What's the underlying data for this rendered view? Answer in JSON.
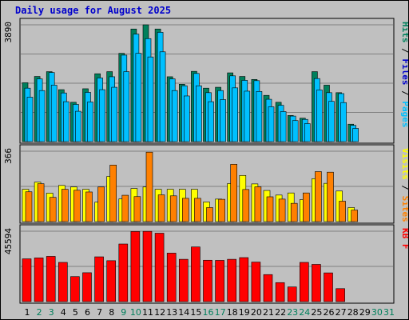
{
  "title": "Daily usage for August 2025",
  "colors": {
    "hits": "#00805c",
    "files": "#00c0ff",
    "pages": "#00c0ff",
    "visits": "#ffff00",
    "sites": "#ff8000",
    "kbf": "#ff0000",
    "weekday": "#000000",
    "weekend": "#00805c",
    "panel_bg": "#c0c0c0"
  },
  "chart_data": {
    "type": "bar",
    "days": [
      "1",
      "2",
      "3",
      "4",
      "5",
      "6",
      "7",
      "8",
      "9",
      "10",
      "11",
      "12",
      "13",
      "14",
      "15",
      "16",
      "17",
      "18",
      "19",
      "20",
      "21",
      "22",
      "23",
      "24",
      "25",
      "26",
      "27",
      "28",
      "29",
      "30",
      "31"
    ],
    "weekend_days": [
      "2",
      "3",
      "9",
      "10",
      "16",
      "17",
      "23",
      "24",
      "30",
      "31"
    ],
    "panels": [
      {
        "id": "top",
        "ymax_label": "3890",
        "ymax": 3890,
        "right_labels": [
          {
            "text": "Pages",
            "color": "#00c0ff"
          },
          {
            "text": " / ",
            "color": "#000000"
          },
          {
            "text": "Files",
            "color": "#0000cc"
          },
          {
            "text": " / ",
            "color": "#000000"
          },
          {
            "text": "Hits",
            "color": "#00805c"
          }
        ],
        "series": [
          {
            "name": "Hits",
            "color": "#00805c",
            "values": [
              1960,
              2170,
              2330,
              1730,
              1310,
              1760,
              2260,
              2330,
              2940,
              3750,
              3890,
              3750,
              2160,
              1910,
              2340,
              1780,
              1810,
              2290,
              2170,
              2070,
              1540,
              1310,
              870,
              780,
              2330,
              1880,
              1630,
              580,
              0,
              0,
              0
            ]
          },
          {
            "name": "Files",
            "color": "#00c0ff",
            "values": [
              1780,
              2090,
              2300,
              1620,
              1240,
              1640,
              2120,
              2160,
              2880,
              3580,
              3430,
              3640,
              2090,
              1860,
              2270,
              1630,
              1700,
              2190,
              2040,
              2030,
              1410,
              1210,
              850,
              740,
              2100,
              1630,
              1600,
              540,
              0,
              0,
              0
            ]
          },
          {
            "name": "Pages",
            "color": "#00c0ff",
            "values": [
              1480,
              1700,
              1880,
              1330,
              1010,
              1320,
              1730,
              1810,
              2330,
              2940,
              2820,
              2990,
              1700,
              1520,
              1860,
              1330,
              1400,
              1790,
              1680,
              1670,
              1160,
              1000,
              700,
              600,
              1720,
              1340,
              1300,
              440,
              0,
              0,
              0
            ]
          }
        ]
      },
      {
        "id": "middle",
        "ymax_label": "366",
        "ymax": 366,
        "right_labels": [
          {
            "text": "Sites",
            "color": "#ff8000"
          },
          {
            "text": " / ",
            "color": "#000000"
          },
          {
            "text": "Visits",
            "color": "#ffff00"
          }
        ],
        "series": [
          {
            "name": "Visits",
            "color": "#ffff00",
            "values": [
              168,
              205,
              148,
              188,
              180,
              168,
              101,
              235,
              118,
              172,
              180,
              168,
              168,
              168,
              168,
              102,
              117,
              198,
              240,
              196,
              162,
              138,
              149,
              114,
              223,
              199,
              159,
              73,
              0,
              0,
              0
            ]
          },
          {
            "name": "Sites",
            "color": "#ff8000",
            "values": [
              155,
              197,
              126,
              168,
              163,
              154,
              180,
              294,
              137,
              130,
              361,
              139,
              134,
              121,
              121,
              73,
              116,
              298,
              167,
              181,
              129,
              117,
              95,
              149,
              260,
              257,
              106,
              60,
              0,
              0,
              0
            ]
          }
        ]
      },
      {
        "id": "bottom",
        "ymax_label": "45594",
        "ymax": 45594,
        "right_labels": [
          {
            "text": "KB F",
            "color": "#ff0000"
          }
        ],
        "series": [
          {
            "name": "KB F",
            "color": "#ff0000",
            "values": [
              27700,
              28300,
              29300,
              25400,
              16200,
              18700,
              29000,
              26500,
              37300,
              45400,
              45500,
              44300,
              31400,
              27400,
              35400,
              26800,
              26700,
              27400,
              28500,
              25600,
              17500,
              12300,
              9500,
              25400,
              24100,
              18600,
              8400,
              0,
              0,
              0,
              0
            ]
          }
        ]
      }
    ]
  }
}
